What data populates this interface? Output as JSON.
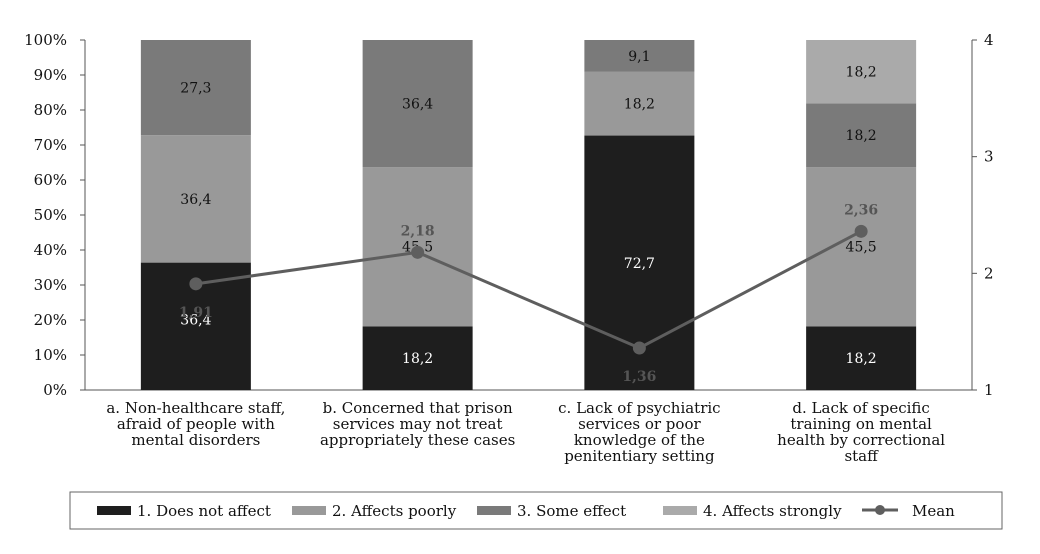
{
  "chart_data": {
    "type": "bar",
    "stacked": true,
    "categories": [
      [
        "a. Non-healthcare staff,",
        "afraid of people with",
        "mental disorders"
      ],
      [
        "b. Concerned that prison",
        "services may not treat",
        "appropriately these cases"
      ],
      [
        "c. Lack of psychiatric",
        "services or poor",
        "knowledge of the",
        "penitentiary setting"
      ],
      [
        "d. Lack of specific",
        "training on mental",
        "health by correctional",
        "staff"
      ]
    ],
    "series": [
      {
        "name": "1. Does not affect",
        "color": "#1e1e1e",
        "label_color": "#ffffff",
        "values": [
          36.4,
          18.2,
          72.7,
          18.2
        ],
        "labels": [
          "36,4",
          "18,2",
          "72,7",
          "18,2"
        ]
      },
      {
        "name": "2. Affects poorly",
        "color": "#999999",
        "label_color": "#111111",
        "values": [
          36.4,
          45.5,
          18.2,
          45.5
        ],
        "labels": [
          "36,4",
          "45,5",
          "18,2",
          "45,5"
        ]
      },
      {
        "name": "3. Some effect",
        "color": "#7a7a7a",
        "label_color": "#111111",
        "values": [
          27.3,
          36.4,
          9.1,
          18.2
        ],
        "labels": [
          "27,3",
          "36,4",
          "9,1",
          "18,2"
        ]
      },
      {
        "name": "4. Affects strongly",
        "color": "#aaaaaa",
        "label_color": "#111111",
        "values": [
          0,
          0,
          0,
          18.2
        ],
        "labels": [
          "",
          "",
          "",
          "18,2"
        ]
      }
    ],
    "mean": {
      "name": "Mean",
      "color": "#5e5e5e",
      "values": [
        1.91,
        2.18,
        1.36,
        2.36
      ],
      "labels": [
        "1,91",
        "2,18",
        "1,36",
        "2,36"
      ]
    },
    "y_left": {
      "range": [
        0,
        100
      ],
      "ticks": [
        "0%",
        "10%",
        "20%",
        "30%",
        "40%",
        "50%",
        "60%",
        "70%",
        "80%",
        "90%",
        "100%"
      ]
    },
    "y_right": {
      "range": [
        1,
        4
      ],
      "ticks": [
        "1",
        "2",
        "3",
        "4"
      ]
    },
    "legend_position": "bottom",
    "grid": false
  }
}
